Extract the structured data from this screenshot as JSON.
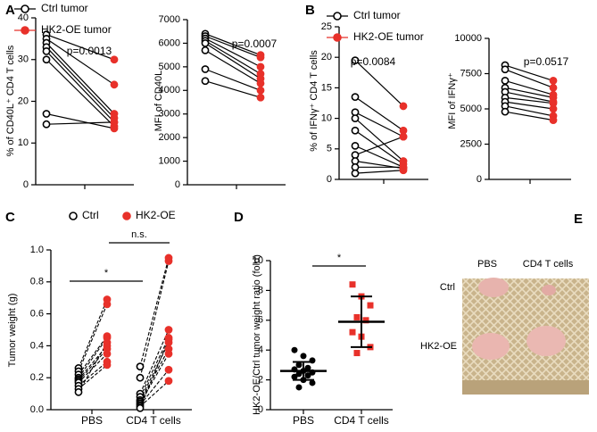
{
  "chart_data": [
    {
      "type": "paired",
      "panel_label": "A",
      "ylabel": "% of CD40L⁺ CD4 T cells",
      "annotation": "p=0.0013",
      "ylim": [
        0,
        40
      ],
      "yticks": [
        0,
        10,
        20,
        30,
        40
      ],
      "series": [
        {
          "name": "Ctrl tumor",
          "color": "#000000",
          "marker": "open",
          "values": [
            36,
            35,
            34,
            33,
            32,
            30,
            17,
            14.5
          ]
        },
        {
          "name": "HK2-OE tumor",
          "color": "#e8312a",
          "marker": "filled",
          "values": [
            30,
            24,
            17,
            16,
            15,
            14,
            13.5,
            15
          ]
        }
      ]
    },
    {
      "type": "paired",
      "ylabel": "MFI of CD40L",
      "annotation": "p=0.0007",
      "ylim": [
        0,
        7000
      ],
      "yticks": [
        0,
        1000,
        2000,
        3000,
        4000,
        5000,
        6000,
        7000
      ],
      "series": [
        {
          "color": "#000000",
          "marker": "open",
          "values": [
            6400,
            6300,
            6200,
            6100,
            6000,
            5700,
            4900,
            4400
          ]
        },
        {
          "color": "#e8312a",
          "marker": "filled",
          "values": [
            5500,
            5400,
            5000,
            4700,
            4500,
            4300,
            4000,
            3700
          ]
        }
      ]
    },
    {
      "type": "paired",
      "panel_label": "B",
      "ylabel": "% of IFNγ⁺ CD4 T cells",
      "annotation": "p=0.0084",
      "ylim": [
        0,
        25
      ],
      "yticks": [
        0,
        5,
        10,
        15,
        20,
        25
      ],
      "series": [
        {
          "name": "Ctrl tumor",
          "color": "#000000",
          "marker": "open",
          "values": [
            19.5,
            13.5,
            11,
            10,
            8,
            5.5,
            4,
            3,
            2,
            1
          ]
        },
        {
          "name": "HK2-OE tumor",
          "color": "#e8312a",
          "marker": "filled",
          "values": [
            12,
            8,
            7,
            3,
            2.5,
            2,
            7,
            1.8,
            2,
            1.5
          ]
        }
      ]
    },
    {
      "type": "paired",
      "ylabel": "MFI of IFNγ⁺",
      "annotation": "p=0.0517",
      "ylim": [
        0,
        10000
      ],
      "yticks": [
        0,
        2500,
        5000,
        7500,
        10000
      ],
      "series": [
        {
          "color": "#000000",
          "marker": "open",
          "values": [
            8100,
            7800,
            7000,
            6500,
            6200,
            5800,
            5500,
            5200,
            4800
          ]
        },
        {
          "color": "#e8312a",
          "marker": "filled",
          "values": [
            7000,
            6500,
            6000,
            5800,
            5500,
            5400,
            5000,
            4500,
            4200
          ]
        }
      ]
    },
    {
      "type": "paired_grouped",
      "panel_label": "C",
      "ylabel": "Tumor weight (g)",
      "categories": [
        "PBS",
        "CD4 T cells"
      ],
      "annotations": [
        "*",
        "n.s."
      ],
      "ylim": [
        0,
        1
      ],
      "yticks": [
        {
          "value": 0,
          "label": "0.0"
        },
        {
          "value": 0.2,
          "label": "0.2"
        },
        {
          "value": 0.4,
          "label": "0.4"
        },
        {
          "value": 0.6,
          "label": "0.6"
        },
        {
          "value": 0.8,
          "label": "0.8"
        },
        {
          "value": 1,
          "label": "1.0"
        }
      ],
      "series": [
        {
          "name": "Ctrl",
          "color": "#000000",
          "marker": "open",
          "values": [
            [
              0.26,
              0.24,
              0.22,
              0.2,
              0.19,
              0.18,
              0.17,
              0.15,
              0.13,
              0.11
            ],
            [
              0.27,
              0.2,
              0.1,
              0.08,
              0.06,
              0.05,
              0.04,
              0.03,
              0.02,
              0.01
            ]
          ]
        },
        {
          "name": "HK2-OE",
          "color": "#e8312a",
          "marker": "filled",
          "values": [
            [
              0.69,
              0.66,
              0.46,
              0.45,
              0.4,
              0.38,
              0.35,
              0.3,
              0.28,
              0.42
            ],
            [
              0.95,
              0.93,
              0.5,
              0.45,
              0.42,
              0.38,
              0.35,
              0.25,
              0.18,
              0.44
            ]
          ]
        }
      ]
    },
    {
      "type": "dot_mean_sd",
      "panel_label": "D",
      "ylabel": "HK2-OE/Ctrl tumor weight ratio (fold)",
      "categories": [
        "PBS",
        "CD4 T cells"
      ],
      "annotations": [
        "*"
      ],
      "ylim": [
        0,
        10
      ],
      "yticks": [
        0,
        2,
        4,
        6,
        8,
        10
      ],
      "groups": [
        {
          "color": "#000000",
          "values": [
            4.0,
            3.6,
            3.3,
            3.0,
            2.8,
            2.7,
            2.6,
            2.5,
            2.4,
            2.3,
            2.2,
            2.0,
            1.8,
            1.5
          ],
          "mean": 2.6,
          "sd": 0.6
        },
        {
          "color": "#e8312a",
          "values": [
            8.4,
            7.6,
            7.0,
            6.2,
            6.0,
            5.2,
            4.9,
            4.2,
            3.8
          ],
          "mean": 5.9,
          "sd": 1.7
        }
      ]
    }
  ],
  "photo": {
    "panel_label": "E",
    "column_labels": [
      "PBS",
      "CD4 T cells"
    ],
    "row_labels": [
      "Ctrl",
      "HK2-OE"
    ]
  }
}
